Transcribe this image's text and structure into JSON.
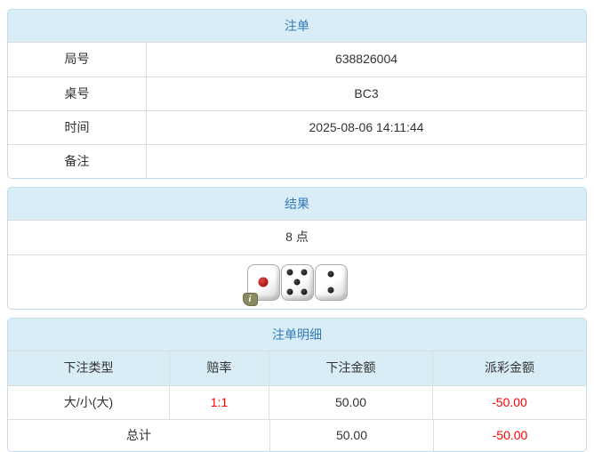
{
  "colors": {
    "heading_bg": "#d9edf7",
    "heading_text": "#337ab7",
    "panel_border": "#c3dde8",
    "row_divider": "#dddddd",
    "text": "#333333",
    "negative_value": "#ff0000",
    "info_badge_bg": "#8a8a60"
  },
  "bet_slip": {
    "title": "注单",
    "rows": [
      {
        "label": "局号",
        "value": "638826004"
      },
      {
        "label": "桌号",
        "value": "BC3"
      },
      {
        "label": "时间",
        "value": "2025-08-06 14:11:44"
      },
      {
        "label": "备注",
        "value": ""
      }
    ]
  },
  "result": {
    "title": "结果",
    "points": "8 点",
    "dice": [
      1,
      5,
      2
    ],
    "info_badge": "i"
  },
  "details": {
    "title": "注单明细",
    "columns": [
      "下注类型",
      "赔率",
      "下注金额",
      "派彩金额"
    ],
    "rows": [
      {
        "type": "大/小(大)",
        "odds": "1:1",
        "amount": "50.00",
        "payout": "-50.00"
      }
    ],
    "total": {
      "label": "总计",
      "amount": "50.00",
      "payout": "-50.00"
    }
  }
}
